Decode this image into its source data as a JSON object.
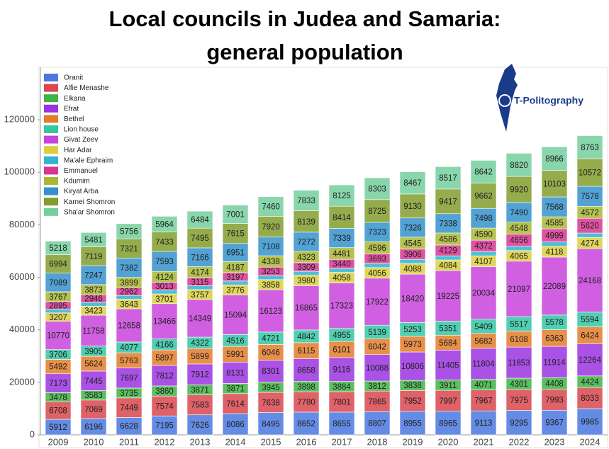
{
  "chart_data": {
    "type": "stacked_bar",
    "title": [
      "Local councils in Judea and Samaria:",
      "general population"
    ],
    "watermark": "T-Politography",
    "categories": [
      "2009",
      "2010",
      "2011",
      "2012",
      "2013",
      "2014",
      "2015",
      "2016",
      "2017",
      "2018",
      "2019",
      "2020",
      "2021",
      "2022",
      "2023",
      "2024"
    ],
    "ylim": [
      0,
      140000
    ],
    "yticks": [
      0,
      20000,
      40000,
      60000,
      80000,
      100000,
      120000
    ],
    "grid": false,
    "legend": "top-left",
    "series": [
      {
        "name": "Oranit",
        "color": "#4a78e0",
        "values": [
          5912,
          6196,
          6628,
          7195,
          7626,
          8086,
          8495,
          8652,
          8655,
          8807,
          8955,
          8965,
          9113,
          9295,
          9367,
          9985
        ]
      },
      {
        "name": "Alfie Menashe",
        "color": "#d9474f",
        "values": [
          6708,
          7069,
          7449,
          7574,
          7583,
          7614,
          7638,
          7780,
          7801,
          7865,
          7952,
          7997,
          7967,
          7975,
          7993,
          8033
        ]
      },
      {
        "name": "Elkana",
        "color": "#3fb544",
        "values": [
          3478,
          3583,
          3735,
          3860,
          3871,
          3871,
          3945,
          3898,
          3884,
          3812,
          3838,
          3911,
          4071,
          4301,
          4408,
          4424
        ]
      },
      {
        "name": "Efrat",
        "color": "#9a34e0",
        "values": [
          7173,
          7445,
          7697,
          7812,
          7912,
          8131,
          8301,
          8658,
          9116,
          10088,
          10806,
          11405,
          11804,
          11853,
          11914,
          12264
        ]
      },
      {
        "name": "Bethel",
        "color": "#e47d2a",
        "values": [
          5492,
          5624,
          5763,
          5897,
          5899,
          5991,
          6046,
          6115,
          6101,
          6042,
          5973,
          5684,
          5682,
          6108,
          6363,
          6424
        ]
      },
      {
        "name": "Lion house",
        "color": "#33c7a4",
        "values": [
          3706,
          3905,
          4077,
          4166,
          4322,
          4516,
          4721,
          4842,
          4955,
          5139,
          5253,
          5351,
          5409,
          5517,
          5578,
          5594
        ]
      },
      {
        "name": "Givat Zeev",
        "color": "#c844dc",
        "values": [
          10770,
          11758,
          12658,
          13466,
          14349,
          15094,
          16123,
          16865,
          17323,
          17922,
          18420,
          19225,
          20034,
          21097,
          22089,
          24168
        ]
      },
      {
        "name": "Har Adar",
        "color": "#dbcf3e",
        "values": [
          3207,
          3423,
          3643,
          3701,
          3757,
          3776,
          3858,
          3980,
          4058,
          4056,
          4088,
          4084,
          4107,
          4065,
          4118,
          4274
        ]
      },
      {
        "name": "Ma'ale Ephraim",
        "color": "#30b4d0",
        "values": [
          1400,
          1400,
          1450,
          1450,
          1450,
          1500,
          1500,
          1500,
          1500,
          1550,
          1550,
          1550,
          1600,
          1600,
          1650,
          1700
        ]
      },
      {
        "name": "Emmanuel",
        "color": "#d93592",
        "values": [
          2895,
          2946,
          2962,
          3013,
          3115,
          3197,
          3253,
          3309,
          3440,
          3693,
          3906,
          4129,
          4372,
          4656,
          4999,
          5620
        ]
      },
      {
        "name": "Kdumim",
        "color": "#a9b834",
        "values": [
          3767,
          3873,
          3899,
          4124,
          4174,
          4187,
          4338,
          4323,
          4481,
          4596,
          4545,
          4586,
          4590,
          4548,
          4585,
          4572
        ]
      },
      {
        "name": "Kiryat Arba",
        "color": "#3592cc",
        "values": [
          7089,
          7247,
          7382,
          7593,
          7166,
          6951,
          7108,
          7272,
          7339,
          7323,
          7326,
          7338,
          7498,
          7490,
          7568,
          7578
        ]
      },
      {
        "name": "Karnei Shomron",
        "color": "#839e2e",
        "values": [
          6994,
          7119,
          7321,
          7433,
          7495,
          7615,
          7920,
          8139,
          8414,
          8725,
          9130,
          9417,
          9662,
          9920,
          10103,
          10572
        ]
      },
      {
        "name": "Sha'ar Shomron",
        "color": "#74cf9e",
        "values": [
          5218,
          5481,
          5756,
          5964,
          6484,
          7001,
          7460,
          7833,
          8125,
          8303,
          8467,
          8517,
          8642,
          8820,
          8966,
          8763
        ]
      }
    ]
  }
}
